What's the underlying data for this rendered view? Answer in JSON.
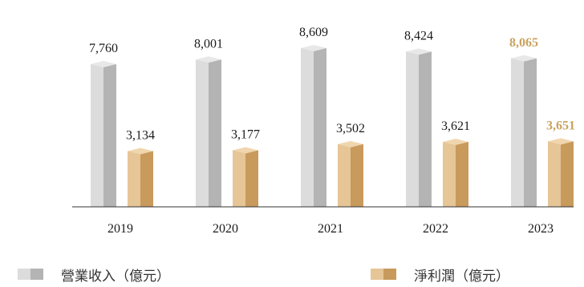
{
  "chart_data": {
    "type": "bar",
    "categories": [
      "2019",
      "2020",
      "2021",
      "2022",
      "2023"
    ],
    "series": [
      {
        "name": "營業收入（億元）",
        "values": [
          7760,
          8001,
          8609,
          8424,
          8065
        ],
        "labels": [
          "7,760",
          "8,001",
          "8,609",
          "8,424",
          "8,065"
        ]
      },
      {
        "name": "淨利潤（億元）",
        "values": [
          3134,
          3177,
          3502,
          3621,
          3651
        ],
        "labels": [
          "3,134",
          "3,177",
          "3,502",
          "3,621",
          "3,651"
        ]
      }
    ],
    "highlight_category": "2023",
    "ylim": [
      0,
      9000
    ],
    "grid": false,
    "legend_position": "bottom",
    "colors": {
      "revenue_light": "#dcdcdc",
      "revenue_dark": "#b4b4b4",
      "revenue_top": "#e8e8e8",
      "profit_light": "#e6c596",
      "profit_dark": "#c89a5c",
      "profit_top": "#f0d6ae",
      "highlight_text": "#c9a25f"
    }
  }
}
